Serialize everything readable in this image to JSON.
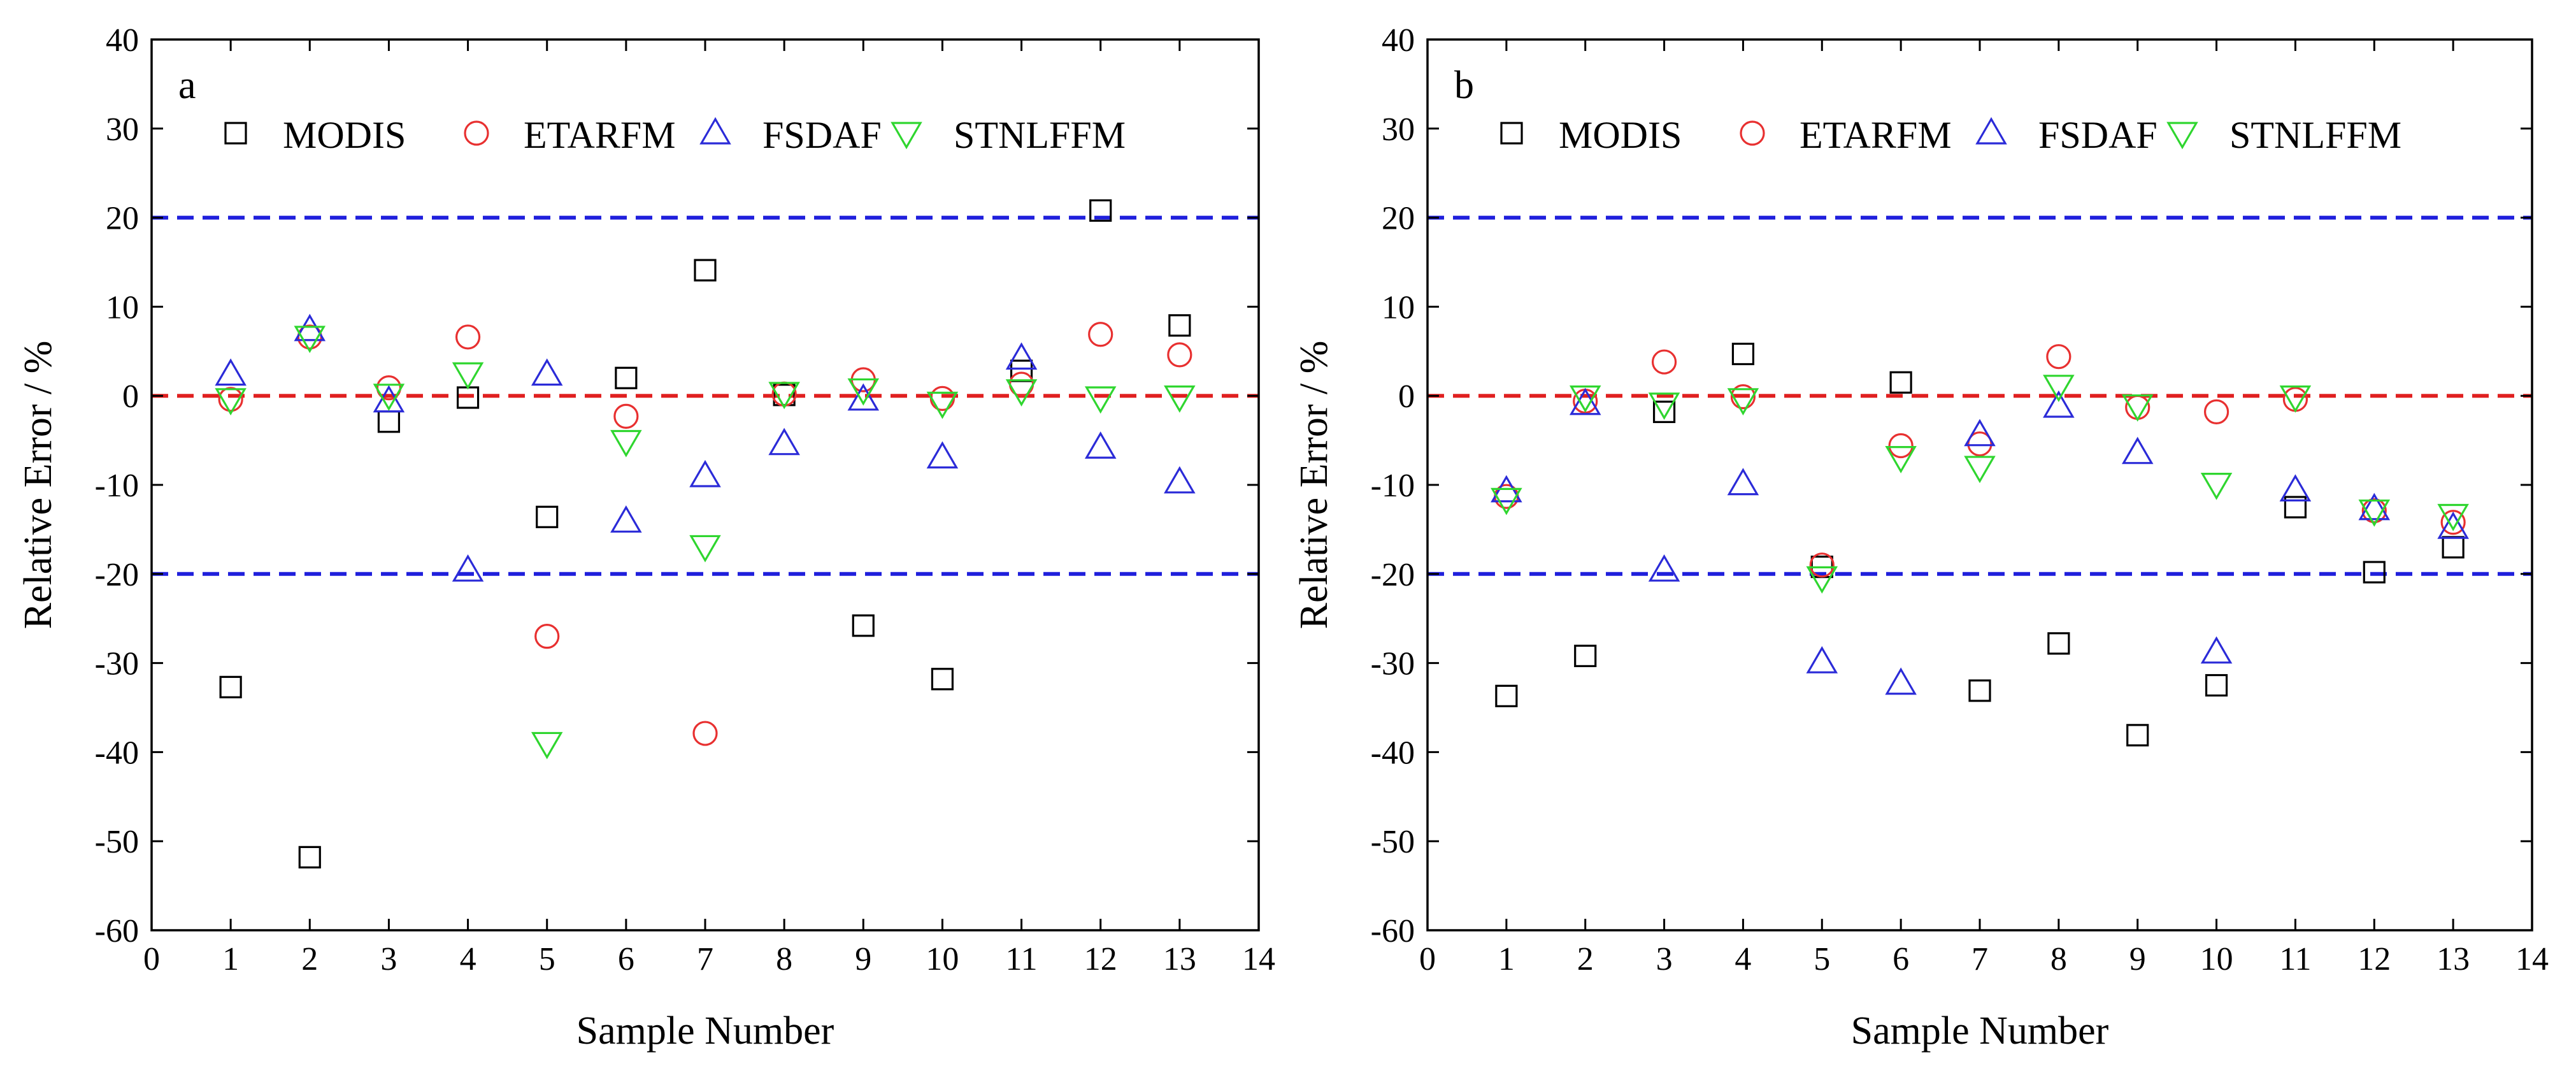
{
  "chart_data": [
    {
      "type": "scatter",
      "panel_label": "a",
      "xlabel": "Sample Number",
      "ylabel": "Relative Error / %",
      "xlim": [
        0,
        14
      ],
      "ylim": [
        -60,
        40
      ],
      "xticks": [
        "0",
        "1",
        "2",
        "3",
        "4",
        "5",
        "6",
        "7",
        "8",
        "9",
        "10",
        "11",
        "12",
        "13",
        "14"
      ],
      "yticks": [
        "40",
        "30",
        "20",
        "10",
        "0",
        "-10",
        "-20",
        "-30",
        "-40",
        "-50",
        "-60"
      ],
      "reference_lines": [
        {
          "y": 20,
          "color": "#1f1fdc",
          "style": "dashed"
        },
        {
          "y": 0,
          "color": "#e02020",
          "style": "dashed"
        },
        {
          "y": -20,
          "color": "#1f1fdc",
          "style": "dashed"
        }
      ],
      "x": [
        1,
        2,
        3,
        4,
        5,
        6,
        7,
        8,
        9,
        10,
        11,
        12,
        13
      ],
      "series": [
        {
          "name": "MODIS",
          "marker": "square",
          "color": "#000000",
          "values": [
            -32.7,
            -51.8,
            -2.9,
            -0.2,
            -13.6,
            2.0,
            14.1,
            0.1,
            -25.8,
            -31.8,
            2.8,
            20.8,
            7.9
          ]
        },
        {
          "name": "ETARFM",
          "marker": "circle",
          "color": "#e83030",
          "values": [
            -0.4,
            6.6,
            0.9,
            6.6,
            -27.0,
            -2.3,
            -37.9,
            0.2,
            1.8,
            -0.3,
            1.3,
            6.9,
            4.6
          ]
        },
        {
          "name": "FSDAF",
          "marker": "triangle-up",
          "color": "#2b2bd8",
          "values": [
            2.4,
            7.4,
            -0.6,
            -19.6,
            2.4,
            -14.1,
            -9.0,
            -5.4,
            -0.4,
            -6.9,
            4.2,
            -5.8,
            -9.7
          ]
        },
        {
          "name": "STNLFFM",
          "marker": "triangle-down",
          "color": "#2fd62f",
          "values": [
            -0.4,
            6.6,
            0.1,
            2.5,
            -39.0,
            -5.1,
            -16.9,
            0.3,
            0.7,
            -0.8,
            0.6,
            -0.2,
            -0.1
          ]
        }
      ]
    },
    {
      "type": "scatter",
      "panel_label": "b",
      "xlabel": "Sample Number",
      "ylabel": "Relative Error / %",
      "xlim": [
        0,
        14
      ],
      "ylim": [
        -60,
        40
      ],
      "xticks": [
        "0",
        "1",
        "2",
        "3",
        "4",
        "5",
        "6",
        "7",
        "8",
        "9",
        "10",
        "11",
        "12",
        "13",
        "14"
      ],
      "yticks": [
        "40",
        "30",
        "20",
        "10",
        "0",
        "-10",
        "-20",
        "-30",
        "-40",
        "-50",
        "-60"
      ],
      "reference_lines": [
        {
          "y": 20,
          "color": "#1f1fdc",
          "style": "dashed"
        },
        {
          "y": 0,
          "color": "#e02020",
          "style": "dashed"
        },
        {
          "y": -20,
          "color": "#1f1fdc",
          "style": "dashed"
        }
      ],
      "x": [
        1,
        2,
        3,
        4,
        5,
        6,
        7,
        8,
        9,
        10,
        11,
        12,
        13
      ],
      "series": [
        {
          "name": "MODIS",
          "marker": "square",
          "color": "#000000",
          "values": [
            -33.7,
            -29.2,
            -1.8,
            4.7,
            -19.2,
            1.5,
            -33.1,
            -27.8,
            -38.1,
            -32.5,
            -12.5,
            -19.8,
            -17.0
          ]
        },
        {
          "name": "ETARFM",
          "marker": "circle",
          "color": "#e83030",
          "values": [
            -11.3,
            -0.6,
            3.8,
            -0.1,
            -19.0,
            -5.6,
            -5.4,
            4.4,
            -1.3,
            -1.8,
            -0.4,
            -12.9,
            -14.2
          ]
        },
        {
          "name": "FSDAF",
          "marker": "triangle-up",
          "color": "#2b2bd8",
          "values": [
            -10.7,
            -0.9,
            -19.6,
            -9.9,
            -29.9,
            -32.3,
            -4.4,
            -1.2,
            -6.4,
            -28.8,
            -10.6,
            -12.7,
            -14.8
          ]
        },
        {
          "name": "STNLFFM",
          "marker": "triangle-down",
          "color": "#2fd62f",
          "values": [
            -11.6,
            -0.1,
            -0.9,
            -0.4,
            -20.4,
            -6.9,
            -8.0,
            1.1,
            -1.1,
            -9.9,
            -0.1,
            -12.9,
            -13.4
          ]
        }
      ]
    }
  ]
}
